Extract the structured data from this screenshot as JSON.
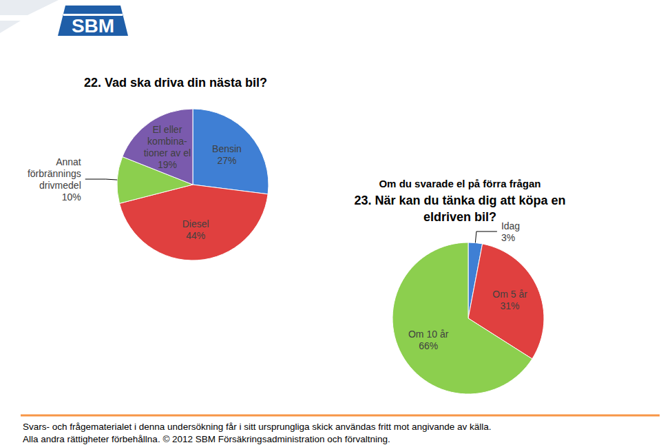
{
  "logo": "SBM",
  "chart_data": [
    {
      "type": "pie",
      "title": "22. Vad ska driva din nästa bil?",
      "categories": [
        "Bensin",
        "Diesel",
        "Annat\nförbrännings\ndrivmedel",
        "El eller\nkombina-\ntioner av el"
      ],
      "values": [
        27,
        44,
        10,
        19
      ],
      "value_labels": [
        "27%",
        "44%",
        "10%",
        "19%"
      ],
      "colors": [
        "#3f7fd4",
        "#e0403f",
        "#8ccf4e",
        "#7a5aad"
      ],
      "data_labels": true
    },
    {
      "type": "pie",
      "subtitle": "Om du svarade el på förra frågan",
      "title": "23. När kan du tänka dig att köpa en\neldriven bil?",
      "categories": [
        "Idag",
        "Om 5 år",
        "Om 10 år"
      ],
      "values": [
        3,
        31,
        66
      ],
      "value_labels": [
        "3%",
        "31%",
        "66%"
      ],
      "colors": [
        "#3f7fd4",
        "#e0403f",
        "#8ccf4e"
      ],
      "data_labels": true
    }
  ],
  "footer": [
    "Svars- och frågematerialet i denna undersökning får i sitt ursprungliga skick användas fritt mot angivande av källa.",
    "Alla andra rättigheter förbehållna. © 2012 SBM Försäkringsadministration och förvaltning."
  ]
}
